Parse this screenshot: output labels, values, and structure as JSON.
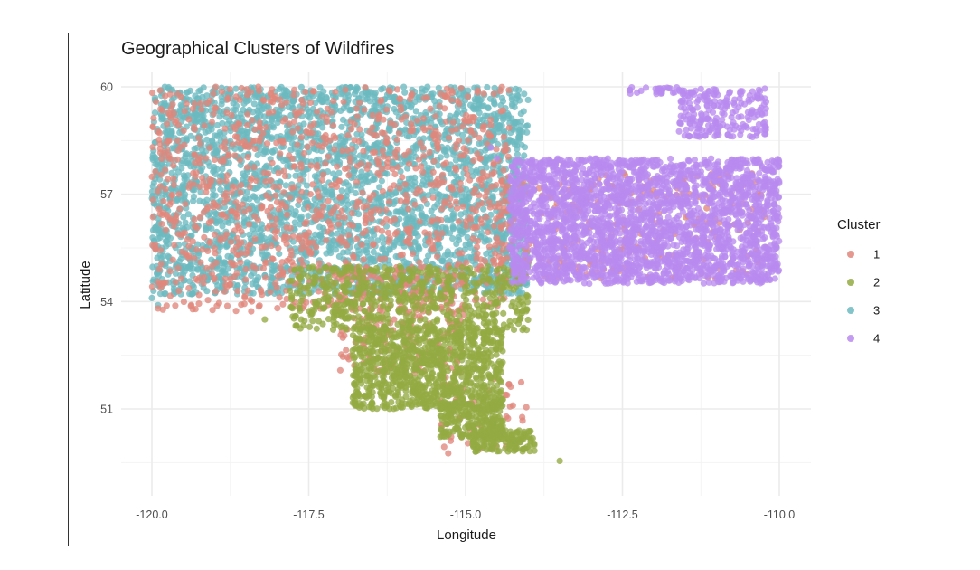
{
  "chart_data": {
    "type": "scatter",
    "title": "Geographical Clusters of Wildfires",
    "xlabel": "Longitude",
    "ylabel": "Latitude",
    "xlim": [
      -120.1,
      -109.9
    ],
    "ylim": [
      49.35,
      60.2
    ],
    "x_ticks": [
      -120.0,
      -117.5,
      -115.0,
      -112.5,
      -110.0
    ],
    "x_tick_labels": [
      "-120.0",
      "-117.5",
      "-115.0",
      "-112.5",
      "-110.0"
    ],
    "y_ticks": [
      51,
      54,
      57,
      60
    ],
    "y_tick_labels": [
      "51",
      "54",
      "57",
      "60"
    ],
    "grid": true,
    "legend": {
      "title": "Cluster",
      "position": "right"
    },
    "series": [
      {
        "name": "1",
        "color": "#E0867B",
        "regions": [
          {
            "x": [
              -120.0,
              -114.3
            ],
            "y": [
              53.7,
              60.0
            ],
            "count": 1100
          },
          {
            "x": [
              -114.6,
              -110.2
            ],
            "y": [
              54.6,
              57.6
            ],
            "count": 260
          },
          {
            "x": [
              -117.0,
              -115.0
            ],
            "y": [
              52.0,
              55.0
            ],
            "count": 230
          },
          {
            "x": [
              -115.4,
              -114.0
            ],
            "y": [
              49.7,
              52.0
            ],
            "count": 60
          }
        ],
        "points": [
          [
            -113.5,
            55.2
          ],
          [
            -111.0,
            55.8
          ],
          [
            -110.5,
            56.2
          ],
          [
            -112.8,
            54.9
          ]
        ]
      },
      {
        "name": "2",
        "color": "#93AA42",
        "regions": [
          {
            "x": [
              -117.8,
              -114.0
            ],
            "y": [
              53.2,
              55.0
            ],
            "count": 600
          },
          {
            "x": [
              -116.8,
              -114.4
            ],
            "y": [
              51.0,
              53.3
            ],
            "count": 950
          },
          {
            "x": [
              -115.4,
              -114.4
            ],
            "y": [
              50.2,
              51.2
            ],
            "count": 220
          },
          {
            "x": [
              -114.9,
              -113.9
            ],
            "y": [
              49.8,
              50.4
            ],
            "count": 140
          }
        ],
        "points": [
          [
            -113.5,
            49.55
          ],
          [
            -118.2,
            53.5
          ]
        ]
      },
      {
        "name": "3",
        "color": "#6CBAC0",
        "regions": [
          {
            "x": [
              -120.0,
              -114.0
            ],
            "y": [
              54.2,
              60.0
            ],
            "count": 3200
          }
        ],
        "points": [
          [
            -120.0,
            54.1
          ],
          [
            -119.9,
            53.9
          ],
          [
            -114.2,
            59.0
          ]
        ]
      },
      {
        "name": "4",
        "color": "#B98BF0",
        "regions": [
          {
            "x": [
              -114.3,
              -110.0
            ],
            "y": [
              54.5,
              58.0
            ],
            "count": 2600
          },
          {
            "x": [
              -111.6,
              -110.2
            ],
            "y": [
              58.6,
              59.95
            ],
            "count": 220
          },
          {
            "x": [
              -112.4,
              -111.3
            ],
            "y": [
              59.8,
              60.0
            ],
            "count": 30
          }
        ],
        "points": [
          [
            -114.6,
            58.3
          ],
          [
            -114.5,
            58.0
          ]
        ]
      }
    ]
  }
}
